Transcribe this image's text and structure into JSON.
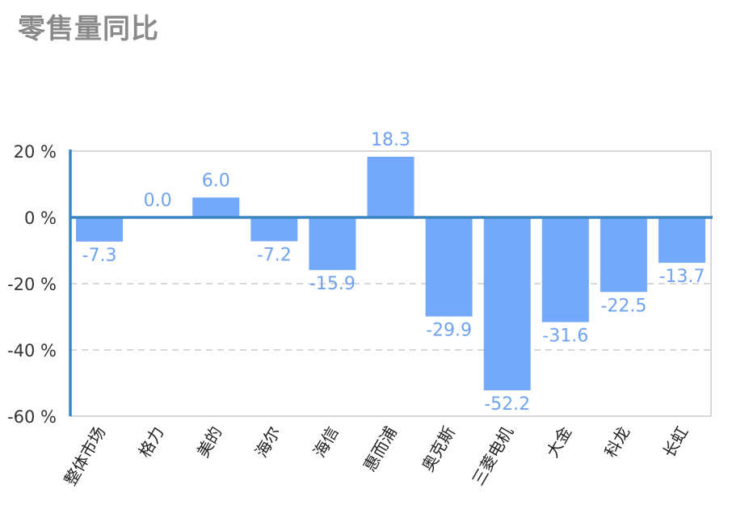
{
  "chart_data": {
    "type": "bar",
    "title": "零售量同比",
    "xlabel": "",
    "ylabel": "",
    "categories": [
      "整体市场",
      "格力",
      "美的",
      "海尔",
      "海信",
      "惠而浦",
      "奥克斯",
      "三菱电机",
      "大金",
      "科龙",
      "长虹"
    ],
    "values": [
      -7.3,
      0.0,
      6.0,
      -7.2,
      -15.9,
      18.3,
      -29.9,
      -52.2,
      -31.6,
      -22.5,
      -13.7
    ],
    "value_labels": [
      "-7.3",
      "0.0",
      "6.0",
      "-7.2",
      "-15.9",
      "18.3",
      "-29.9",
      "-52.2",
      "-31.6",
      "-22.5",
      "-13.7"
    ],
    "ylim": [
      -60,
      20
    ],
    "yticks": [
      20,
      0,
      -20,
      -40,
      -60
    ],
    "ytick_labels": [
      "20 %",
      "0 %",
      "-20 %",
      "-40 %",
      "-60 %"
    ],
    "grid": "horizontal dashed",
    "legend": "none",
    "colors": {
      "bar": "#74a8fb",
      "axis": "#3a86c3",
      "label": "#6fa2f0",
      "grid": "#cccccc",
      "frame": "#cccccc"
    }
  }
}
